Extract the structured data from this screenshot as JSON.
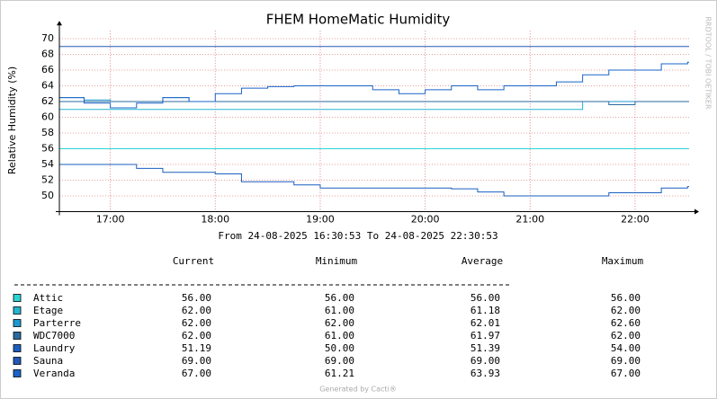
{
  "chart_data": {
    "type": "step-line",
    "title": "FHEM HomeMatic Humidity",
    "subtitle": "From 24-08-2025 16:30:53 To 24-08-2025 22:30:53",
    "y_label": "Relative Humidity (%)",
    "side_label": "RRDTOOL / TOBI OETIKER",
    "footer": "Generated by Cacti®",
    "x": [
      "16:31",
      "16:45",
      "17:00",
      "17:15",
      "17:30",
      "17:45",
      "18:00",
      "18:15",
      "18:30",
      "18:45",
      "19:00",
      "19:15",
      "19:30",
      "19:45",
      "20:00",
      "20:15",
      "20:30",
      "20:45",
      "21:00",
      "21:15",
      "21:30",
      "21:45",
      "22:00",
      "22:15",
      "22:30"
    ],
    "xlim": [
      "16:30:53",
      "22:30:53"
    ],
    "xticks": [
      "17:00",
      "18:00",
      "19:00",
      "20:00",
      "21:00",
      "22:00"
    ],
    "ylim": [
      48,
      71
    ],
    "yticks": [
      50,
      52,
      54,
      56,
      58,
      60,
      62,
      64,
      66,
      68,
      70
    ],
    "grid": true,
    "legend_headers": [
      "Current",
      "Minimum",
      "Average",
      "Maximum"
    ],
    "series": [
      {
        "name": "Attic",
        "color": "#2ad4d4",
        "values": [
          56,
          56,
          56,
          56,
          56,
          56,
          56,
          56,
          56,
          56,
          56,
          56,
          56,
          56,
          56,
          56,
          56,
          56,
          56,
          56,
          56,
          56,
          56,
          56,
          56
        ],
        "stats": [
          "56.00",
          "56.00",
          "56.00",
          "56.00"
        ]
      },
      {
        "name": "Etage",
        "color": "#22b6d0",
        "values": [
          61,
          61,
          61,
          61,
          61,
          61,
          61,
          61,
          61,
          61,
          61,
          61,
          61,
          61,
          61,
          61,
          61,
          61,
          61,
          61,
          62,
          62,
          62,
          62,
          62
        ],
        "stats": [
          "62.00",
          "61.00",
          "61.18",
          "62.00"
        ]
      },
      {
        "name": "Parterre",
        "color": "#1c9ad0",
        "values": [
          62.5,
          62.2,
          62,
          62,
          62.5,
          62,
          62,
          62,
          62,
          62,
          62,
          62,
          62,
          62,
          62,
          62,
          62,
          62,
          62,
          62,
          62,
          62,
          62,
          62,
          62
        ],
        "stats": [
          "62.00",
          "62.00",
          "62.01",
          "62.60"
        ]
      },
      {
        "name": "WDC7000",
        "color": "#2a6aa0",
        "values": [
          62,
          62,
          62,
          62,
          62,
          62,
          62,
          62,
          62,
          62,
          62,
          62,
          62,
          62,
          62,
          62,
          62,
          62,
          62,
          62,
          62,
          61.6,
          62,
          62,
          62
        ],
        "stats": [
          "62.00",
          "61.00",
          "61.97",
          "62.00"
        ]
      },
      {
        "name": "Laundry",
        "color": "#1a5fc0",
        "values": [
          54,
          54,
          54,
          53.5,
          53,
          53,
          52.8,
          51.8,
          51.8,
          51.4,
          51,
          51,
          51,
          51,
          51,
          50.9,
          50.5,
          50,
          50,
          50,
          50,
          50.4,
          50.4,
          51,
          51.19
        ],
        "stats": [
          "51.19",
          "50.00",
          "51.39",
          "54.00"
        ]
      },
      {
        "name": "Sauna",
        "color": "#2458b8",
        "values": [
          69,
          69,
          69,
          69,
          69,
          69,
          69,
          69,
          69,
          69,
          69,
          69,
          69,
          69,
          69,
          69,
          69,
          69,
          69,
          69,
          69,
          69,
          69,
          69,
          69
        ],
        "stats": [
          "69.00",
          "69.00",
          "69.00",
          "69.00"
        ]
      },
      {
        "name": "Veranda",
        "color": "#1a64c8",
        "values": [
          62.5,
          61.8,
          61.2,
          61.8,
          62.5,
          62,
          63,
          63.7,
          63.9,
          64,
          64,
          64,
          63.5,
          63,
          63.5,
          64,
          63.5,
          64,
          64,
          64.5,
          65.4,
          66,
          66,
          66.8,
          67
        ],
        "stats": [
          "67.00",
          "61.21",
          "63.93",
          "67.00"
        ]
      }
    ]
  }
}
